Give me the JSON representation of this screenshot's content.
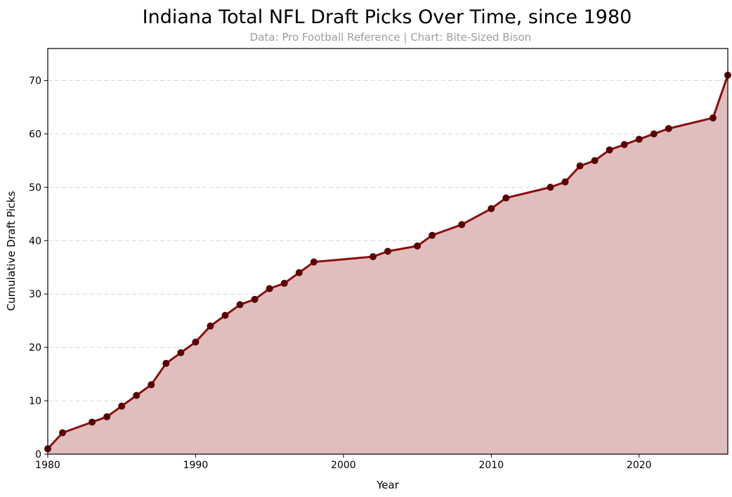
{
  "colors": {
    "line": "#8b0e0e",
    "fill": "#e1bebe",
    "marker": "#5a0000",
    "subtitle": "#9e9e9e"
  },
  "chart_data": {
    "type": "area",
    "title": "Indiana Total NFL Draft Picks Over Time, since 1980",
    "subtitle": "Data: Pro Football Reference | Chart: Bite-Sized Bison",
    "xlabel": "Year",
    "ylabel": "Cumulative Draft Picks",
    "xlim": [
      1980,
      2026
    ],
    "ylim": [
      0,
      76
    ],
    "x_ticks": [
      1980,
      1990,
      2000,
      2010,
      2020
    ],
    "y_ticks": [
      0,
      10,
      20,
      30,
      40,
      50,
      60,
      70
    ],
    "grid": "horizontal dashed",
    "legend": "none",
    "series": [
      {
        "x": [
          1980,
          1981,
          1983,
          1984,
          1985,
          1986,
          1987,
          1988,
          1989,
          1990,
          1991,
          1992,
          1993,
          1994,
          1995,
          1996,
          1997,
          1998,
          2002,
          2003,
          2005,
          2006,
          2008,
          2010,
          2011,
          2014,
          2015,
          2016,
          2017,
          2018,
          2019,
          2020,
          2021,
          2022,
          2025,
          2026
        ],
        "y": [
          1,
          4,
          6,
          7,
          9,
          11,
          13,
          17,
          19,
          21,
          24,
          26,
          28,
          29,
          31,
          32,
          34,
          36,
          37,
          38,
          39,
          41,
          43,
          46,
          48,
          50,
          51,
          54,
          55,
          57,
          58,
          59,
          60,
          61,
          63,
          71
        ]
      }
    ]
  }
}
